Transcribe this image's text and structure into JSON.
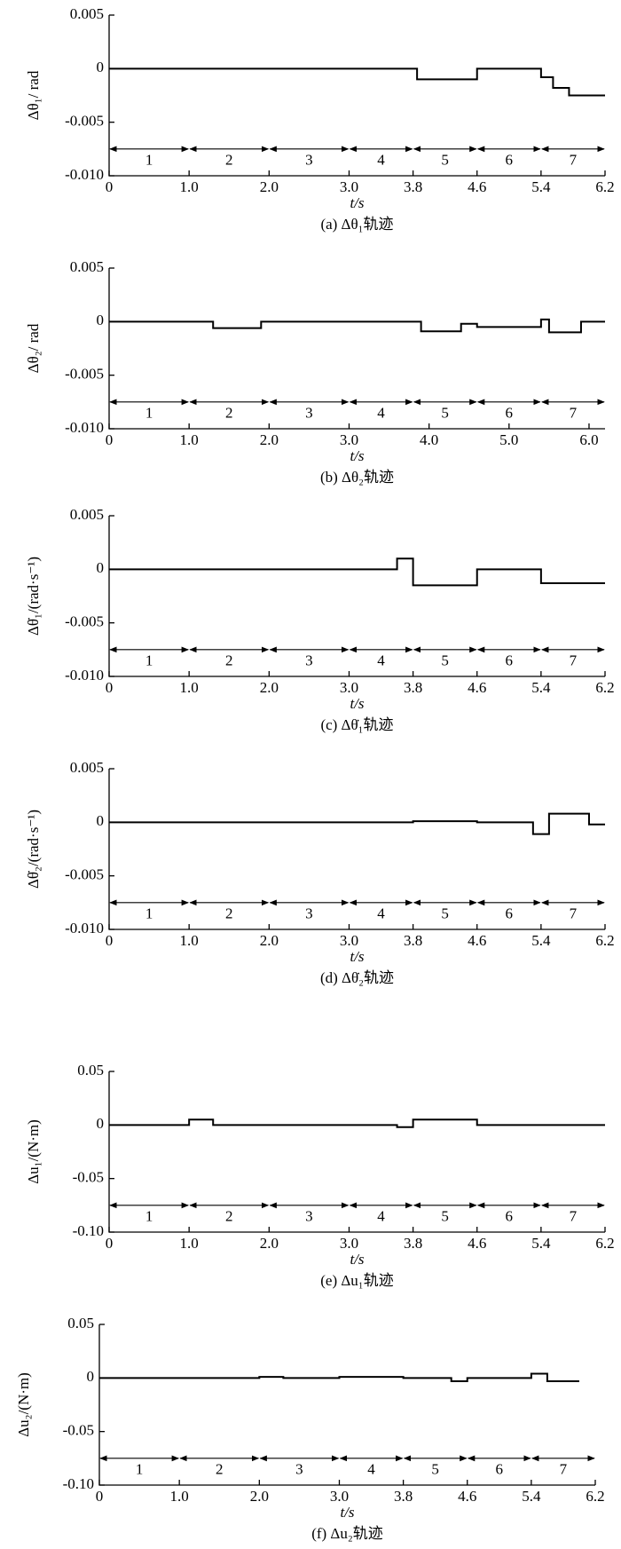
{
  "chart_data": [
    {
      "type": "line",
      "caption": "(a) Δθ₁轨迹",
      "ylabel": "Δθ₁/ rad",
      "xlabel": "t/s",
      "xlim": [
        0,
        6.2
      ],
      "ylim": [
        -0.01,
        0.005
      ],
      "xticks": [
        0,
        {
          "value": 1,
          "label": "1.0"
        },
        {
          "value": 2,
          "label": "2.0"
        },
        {
          "value": 3,
          "label": "3.0"
        },
        3.8,
        4.6,
        5.4,
        6.2
      ],
      "yticks": [
        0.005,
        0,
        -0.005,
        {
          "value": -0.01,
          "label": "-0.010"
        }
      ],
      "phase_y": -0.0075,
      "phases": [
        {
          "label": "1",
          "start": 0,
          "end": 1
        },
        {
          "label": "2",
          "start": 1,
          "end": 2
        },
        {
          "label": "3",
          "start": 2,
          "end": 3
        },
        {
          "label": "4",
          "start": 3,
          "end": 3.8
        },
        {
          "label": "5",
          "start": 3.8,
          "end": 4.6
        },
        {
          "label": "6",
          "start": 4.6,
          "end": 5.4
        },
        {
          "label": "7",
          "start": 5.4,
          "end": 6.2
        }
      ],
      "color": "#000000",
      "x": [
        0,
        3.85,
        3.85,
        4.6,
        4.6,
        5.4,
        5.4,
        5.55,
        5.55,
        5.75,
        5.75,
        6.2
      ],
      "values": [
        0,
        0,
        -0.001,
        -0.001,
        0,
        0,
        -0.0008,
        -0.0008,
        -0.0018,
        -0.0018,
        -0.0025,
        -0.0025
      ]
    },
    {
      "type": "line",
      "caption": "(b) Δθ₂轨迹",
      "ylabel": "Δθ₂/ rad",
      "xlabel": "t/s",
      "xlim": [
        0,
        6.2
      ],
      "ylim": [
        -0.01,
        0.005
      ],
      "xticks": [
        0,
        {
          "value": 1,
          "label": "1.0"
        },
        {
          "value": 2,
          "label": "2.0"
        },
        {
          "value": 3,
          "label": "3.0"
        },
        {
          "value": 4,
          "label": "4.0"
        },
        {
          "value": 5,
          "label": "5.0"
        },
        {
          "value": 6,
          "label": "6.0"
        }
      ],
      "yticks": [
        0.005,
        0,
        -0.005,
        {
          "value": -0.01,
          "label": "-0.010"
        }
      ],
      "phase_y": -0.0075,
      "phases": [
        {
          "label": "1",
          "start": 0,
          "end": 1
        },
        {
          "label": "2",
          "start": 1,
          "end": 2
        },
        {
          "label": "3",
          "start": 2,
          "end": 3
        },
        {
          "label": "4",
          "start": 3,
          "end": 3.8
        },
        {
          "label": "5",
          "start": 3.8,
          "end": 4.6
        },
        {
          "label": "6",
          "start": 4.6,
          "end": 5.4
        },
        {
          "label": "7",
          "start": 5.4,
          "end": 6.2
        }
      ],
      "color": "#000000",
      "x": [
        0,
        1.3,
        1.3,
        1.9,
        1.9,
        3.9,
        3.9,
        4.4,
        4.4,
        4.6,
        4.6,
        5.4,
        5.4,
        5.5,
        5.5,
        5.9,
        5.9,
        6.2
      ],
      "values": [
        0,
        0,
        -0.0006,
        -0.0006,
        0,
        0,
        -0.0009,
        -0.0009,
        -0.0002,
        -0.0002,
        -0.0005,
        -0.0005,
        0.0002,
        0.0002,
        -0.001,
        -0.001,
        0,
        0
      ]
    },
    {
      "type": "line",
      "caption": "(c) Δθ̇₁轨迹",
      "ylabel": "Δθ̇₁/(rad·s⁻¹)",
      "xlabel": "t/s",
      "xlim": [
        0,
        6.2
      ],
      "ylim": [
        -0.01,
        0.005
      ],
      "xticks": [
        0,
        {
          "value": 1,
          "label": "1.0"
        },
        {
          "value": 2,
          "label": "2.0"
        },
        {
          "value": 3,
          "label": "3.0"
        },
        3.8,
        4.6,
        5.4,
        6.2
      ],
      "yticks": [
        0.005,
        0,
        -0.005,
        {
          "value": -0.01,
          "label": "-0.010"
        }
      ],
      "phase_y": -0.0075,
      "phases": [
        {
          "label": "1",
          "start": 0,
          "end": 1
        },
        {
          "label": "2",
          "start": 1,
          "end": 2
        },
        {
          "label": "3",
          "start": 2,
          "end": 3
        },
        {
          "label": "4",
          "start": 3,
          "end": 3.8
        },
        {
          "label": "5",
          "start": 3.8,
          "end": 4.6
        },
        {
          "label": "6",
          "start": 4.6,
          "end": 5.4
        },
        {
          "label": "7",
          "start": 5.4,
          "end": 6.2
        }
      ],
      "color": "#000000",
      "x": [
        0,
        3.6,
        3.6,
        3.8,
        3.8,
        4.6,
        4.6,
        5.4,
        5.4,
        6.2
      ],
      "values": [
        0,
        0,
        0.001,
        0.001,
        -0.0015,
        -0.0015,
        0,
        0,
        -0.0013,
        -0.0013
      ]
    },
    {
      "type": "line",
      "caption": "(d) Δθ̇₂轨迹",
      "ylabel": "Δθ̇₂/(rad·s⁻¹)",
      "xlabel": "t/s",
      "xlim": [
        0,
        6.2
      ],
      "ylim": [
        -0.01,
        0.005
      ],
      "xticks": [
        0,
        {
          "value": 1,
          "label": "1.0"
        },
        {
          "value": 2,
          "label": "2.0"
        },
        {
          "value": 3,
          "label": "3.0"
        },
        3.8,
        4.6,
        5.4,
        6.2
      ],
      "yticks": [
        0.005,
        0,
        -0.005,
        {
          "value": -0.01,
          "label": "-0.010"
        }
      ],
      "phase_y": -0.0075,
      "phases": [
        {
          "label": "1",
          "start": 0,
          "end": 1
        },
        {
          "label": "2",
          "start": 1,
          "end": 2
        },
        {
          "label": "3",
          "start": 2,
          "end": 3
        },
        {
          "label": "4",
          "start": 3,
          "end": 3.8
        },
        {
          "label": "5",
          "start": 3.8,
          "end": 4.6
        },
        {
          "label": "6",
          "start": 4.6,
          "end": 5.4
        },
        {
          "label": "7",
          "start": 5.4,
          "end": 6.2
        }
      ],
      "color": "#000000",
      "x": [
        0,
        3.8,
        3.8,
        4.6,
        4.6,
        5.3,
        5.3,
        5.5,
        5.5,
        6.0,
        6.0,
        6.2
      ],
      "values": [
        0,
        0,
        0.0001,
        0.0001,
        0,
        0,
        -0.0011,
        -0.0011,
        0.0008,
        0.0008,
        -0.0002,
        -0.0002
      ]
    },
    {
      "type": "line",
      "caption": "(e) Δu₁轨迹",
      "ylabel": "Δu₁/(N·m)",
      "xlabel": "t/s",
      "xlim": [
        0,
        6.2
      ],
      "ylim": [
        -0.1,
        0.05
      ],
      "xticks": [
        0,
        {
          "value": 1,
          "label": "1.0"
        },
        {
          "value": 2,
          "label": "2.0"
        },
        {
          "value": 3,
          "label": "3.0"
        },
        3.8,
        4.6,
        5.4,
        6.2
      ],
      "yticks": [
        0.05,
        0,
        -0.05,
        {
          "value": -0.1,
          "label": "-0.10"
        }
      ],
      "phase_y": -0.075,
      "phases": [
        {
          "label": "1",
          "start": 0,
          "end": 1
        },
        {
          "label": "2",
          "start": 1,
          "end": 2
        },
        {
          "label": "3",
          "start": 2,
          "end": 3
        },
        {
          "label": "4",
          "start": 3,
          "end": 3.8
        },
        {
          "label": "5",
          "start": 3.8,
          "end": 4.6
        },
        {
          "label": "6",
          "start": 4.6,
          "end": 5.4
        },
        {
          "label": "7",
          "start": 5.4,
          "end": 6.2
        }
      ],
      "color": "#000000",
      "x": [
        0,
        1.0,
        1.0,
        1.3,
        1.3,
        3.6,
        3.6,
        3.8,
        3.8,
        4.6,
        4.6,
        6.2
      ],
      "values": [
        0,
        0,
        0.005,
        0.005,
        0,
        0,
        -0.002,
        -0.002,
        0.005,
        0.005,
        0,
        0
      ]
    },
    {
      "type": "line",
      "caption": "(f) Δu₂轨迹",
      "ylabel": "Δu₂/(N·m)",
      "xlabel": "t/s",
      "xlim": [
        0,
        6.2
      ],
      "ylim": [
        -0.1,
        0.05
      ],
      "xticks": [
        0,
        {
          "value": 1,
          "label": "1.0"
        },
        {
          "value": 2,
          "label": "2.0"
        },
        {
          "value": 3,
          "label": "3.0"
        },
        3.8,
        4.6,
        5.4,
        6.2
      ],
      "yticks": [
        0.05,
        0,
        -0.05,
        {
          "value": -0.1,
          "label": "-0.10"
        }
      ],
      "phase_y": -0.075,
      "phases": [
        {
          "label": "1",
          "start": 0,
          "end": 1
        },
        {
          "label": "2",
          "start": 1,
          "end": 2
        },
        {
          "label": "3",
          "start": 2,
          "end": 3
        },
        {
          "label": "4",
          "start": 3,
          "end": 3.8
        },
        {
          "label": "5",
          "start": 3.8,
          "end": 4.6
        },
        {
          "label": "6",
          "start": 4.6,
          "end": 5.4
        },
        {
          "label": "7",
          "start": 5.4,
          "end": 6.2
        }
      ],
      "color": "#000000",
      "x": [
        0,
        2.0,
        2.0,
        2.3,
        2.3,
        3.0,
        3.0,
        3.8,
        3.8,
        4.4,
        4.4,
        4.6,
        4.6,
        5.4,
        5.4,
        5.6,
        5.6,
        6.0
      ],
      "values": [
        0,
        0,
        0.001,
        0.001,
        0,
        0,
        0.001,
        0.001,
        0,
        0,
        -0.003,
        -0.003,
        0,
        0,
        0.004,
        0.004,
        -0.003,
        -0.003
      ]
    }
  ]
}
